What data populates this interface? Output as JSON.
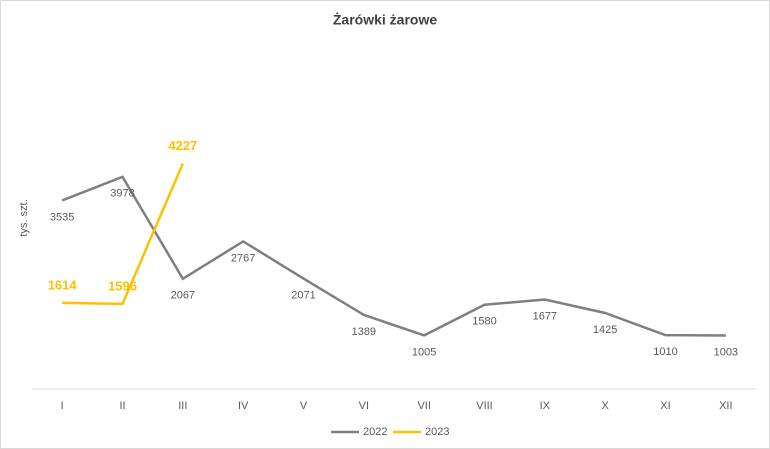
{
  "chart_data": {
    "type": "line",
    "title": "Żarówki żarowe",
    "y_label": "tys. szt.",
    "categories": [
      "I",
      "II",
      "III",
      "IV",
      "V",
      "VI",
      "VII",
      "VIII",
      "IX",
      "X",
      "XI",
      "XII"
    ],
    "series": [
      {
        "name": "2022",
        "color": "#7f7f7f",
        "values": [
          3535,
          3978,
          2067,
          2767,
          2071,
          1389,
          1005,
          1580,
          1677,
          1425,
          1010,
          1003
        ]
      },
      {
        "name": "2023",
        "color": "#ffc000",
        "values": [
          1614,
          1596,
          4227,
          null,
          null,
          null,
          null,
          null,
          null,
          null,
          null,
          null
        ]
      }
    ],
    "ylim": [
      0,
      6000
    ],
    "legend": "bottom"
  }
}
